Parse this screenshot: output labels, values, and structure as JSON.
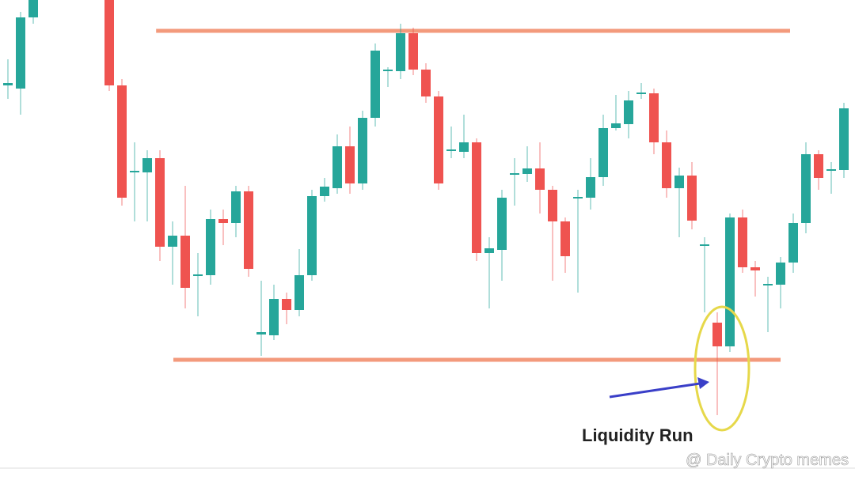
{
  "chart_data": {
    "type": "candlestick",
    "x": [
      0,
      1,
      2,
      8,
      9,
      10,
      11,
      12,
      13,
      14,
      15,
      16,
      17,
      18,
      19,
      20,
      21,
      22,
      23,
      24,
      25,
      26,
      27,
      28,
      29,
      30,
      31,
      32,
      33,
      34,
      35,
      36,
      37,
      38,
      39,
      40,
      41,
      42,
      43,
      44,
      45,
      46,
      47,
      48,
      49,
      50,
      51,
      52,
      53,
      54,
      55,
      56,
      57,
      58,
      59,
      60,
      61,
      62,
      63,
      64,
      65,
      66
    ],
    "open": [
      492,
      488,
      578,
      600,
      492,
      383,
      382,
      400,
      288,
      302,
      252,
      252,
      323,
      318,
      358,
      177,
      176,
      222,
      208,
      252,
      352,
      362,
      415,
      368,
      451,
      511,
      510,
      558,
      512,
      478,
      410,
      408,
      420,
      280,
      284,
      380,
      380,
      387,
      360,
      320,
      350,
      350,
      376,
      438,
      443,
      482,
      482,
      420,
      362,
      378,
      290,
      192,
      162,
      325,
      262,
      240,
      240,
      268,
      318,
      405,
      385,
      385
    ],
    "high": [
      525,
      585,
      600,
      600,
      500,
      420,
      410,
      410,
      320,
      365,
      280,
      335,
      335,
      365,
      365,
      245,
      240,
      230,
      285,
      360,
      375,
      430,
      440,
      460,
      545,
      515,
      570,
      565,
      520,
      485,
      440,
      455,
      425,
      300,
      360,
      400,
      415,
      420,
      365,
      325,
      360,
      400,
      455,
      480,
      485,
      495,
      488,
      435,
      388,
      395,
      300,
      205,
      330,
      335,
      270,
      250,
      275,
      330,
      420,
      410,
      395,
      470
    ],
    "low": [
      475,
      455,
      570,
      485,
      340,
      320,
      320,
      270,
      240,
      210,
      200,
      240,
      290,
      300,
      250,
      150,
      170,
      190,
      200,
      245,
      345,
      355,
      355,
      360,
      440,
      490,
      500,
      505,
      470,
      360,
      400,
      400,
      270,
      210,
      245,
      340,
      370,
      330,
      245,
      255,
      230,
      335,
      365,
      435,
      425,
      475,
      405,
      350,
      300,
      310,
      205,
      75,
      155,
      255,
      225,
      180,
      210,
      255,
      305,
      360,
      355,
      375
    ],
    "close": [
      495,
      578,
      600,
      492,
      350,
      384,
      400,
      288,
      302,
      236,
      253,
      323,
      318,
      358,
      260,
      180,
      222,
      208,
      252,
      352,
      364,
      415,
      368,
      451,
      536,
      512,
      558,
      512,
      478,
      368,
      411,
      420,
      280,
      286,
      350,
      381,
      387,
      360,
      320,
      276,
      351,
      376,
      438,
      444,
      473,
      483,
      420,
      362,
      378,
      321,
      291,
      162,
      325,
      262,
      258,
      241,
      268,
      318,
      405,
      375,
      386,
      463
    ],
    "up_color": "#26a69a",
    "down_color": "#ef5350",
    "xlim": [
      -0.625,
      66.875
    ],
    "ylim": [
      0,
      600
    ],
    "levels": [
      {
        "value": 561,
        "from": 11.7,
        "to": 61.75,
        "color": "#f39a7c"
      },
      {
        "value": 145,
        "from": 13.06,
        "to": 61,
        "color": "#f39a7c"
      }
    ],
    "annotation": "Liquidity Run"
  },
  "watermark": "@ Daily Crypto memes"
}
